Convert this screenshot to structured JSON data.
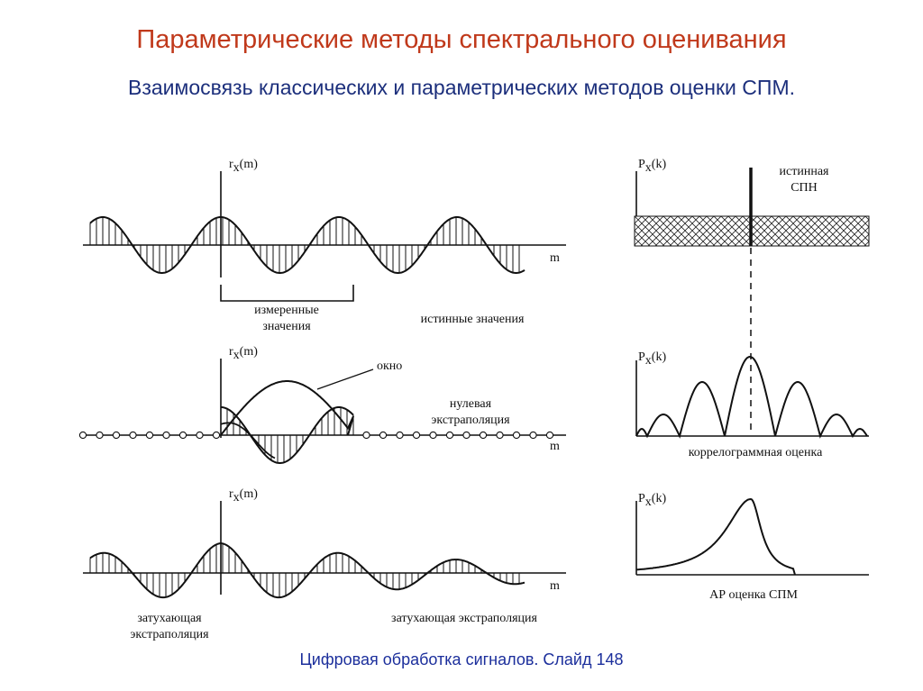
{
  "slide": {
    "title": "Параметрические методы спектрального оценивания",
    "subtitle": "Взаимосвязь классических и параметрических методов оценки СПМ.",
    "footer": "Цифровая обработка сигналов.  Слайд  148"
  },
  "labels": {
    "r": "r",
    "x_sub": "x",
    "m_arg": "(m)",
    "P": "P",
    "k_arg": "(k)",
    "m_axis": "m",
    "measured": [
      "измеренные",
      "значения"
    ],
    "true_values": "истинные значения",
    "window": "окно",
    "zero_extrap": [
      "нулевая",
      "экстраполяция"
    ],
    "true_psd": [
      "истинная",
      "СПН"
    ],
    "correlogram": "коррелограммная оценка",
    "ar_psd": "АР  оценка  СПМ",
    "damped_left": [
      "затухающая",
      "экстраполяция"
    ],
    "damped_right": "затухающая экстраполяция"
  },
  "colors": {
    "title": "#c0391b",
    "subtitle": "#1c2f7c",
    "footer": "#1c2f9c",
    "stroke": "#111111"
  }
}
